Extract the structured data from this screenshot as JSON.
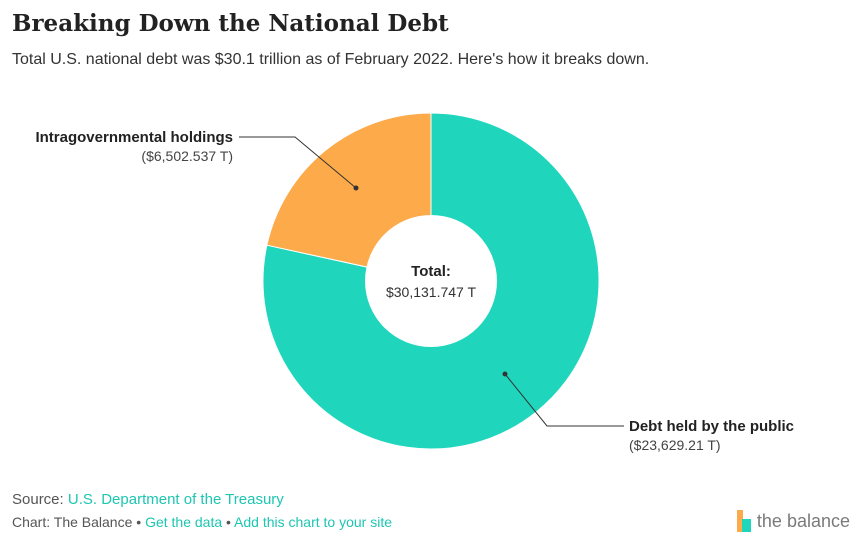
{
  "title": "Breaking Down the National Debt",
  "subtitle": "Total U.S. national debt was $30.1 trillion as of February 2022. Here's how it breaks down.",
  "chart_data": {
    "type": "pie",
    "style": "donut",
    "center_label": "Total:",
    "center_value": "$30,131.747 T",
    "total": 30131.747,
    "slices": [
      {
        "name": "Debt held by the public",
        "label": "($23,629.21 T)",
        "value": 23629.21,
        "color": "#1fd6bd"
      },
      {
        "name": "Intragovernmental holdings",
        "label": "($6,502.537 T)",
        "value": 6502.537,
        "color": "#fcaa4a"
      }
    ]
  },
  "footer": {
    "source_prefix": "Source:",
    "source_link": "U.S. Department of the Treasury",
    "credit": "Chart: The Balance",
    "sep1": "•",
    "get_data": "Get the data",
    "sep2": "•",
    "add_chart": "Add this chart to your site"
  },
  "brand": {
    "name": "the balance",
    "colors": [
      "#fcaa4a",
      "#1fd6bd"
    ]
  }
}
